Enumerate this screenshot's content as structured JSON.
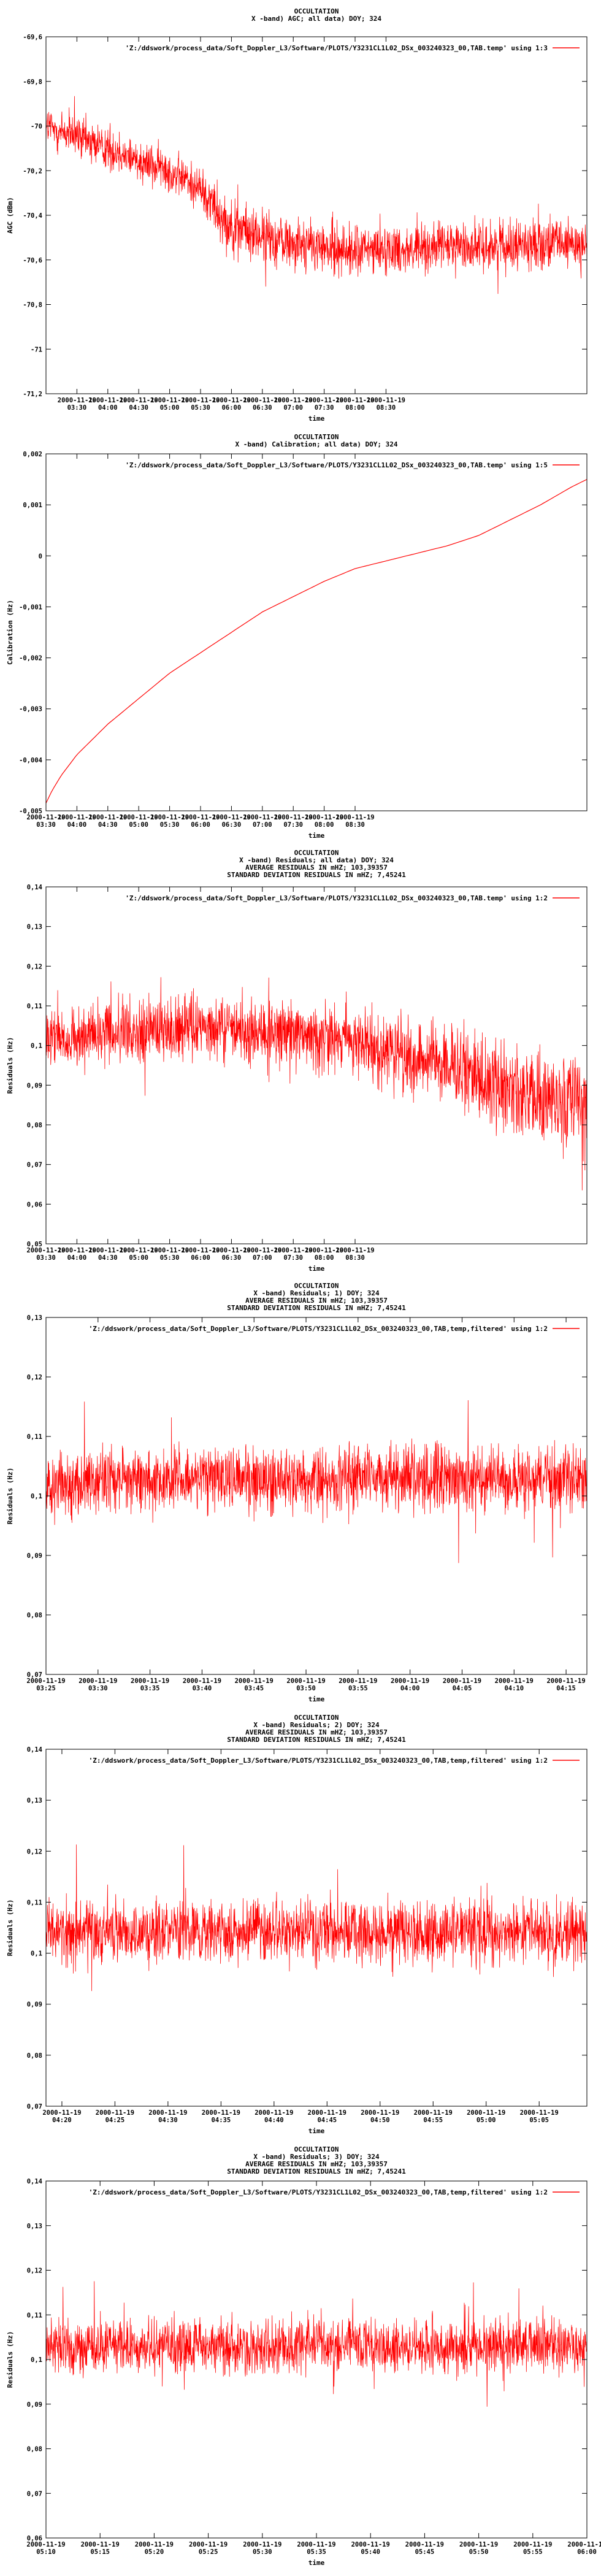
{
  "colors": {
    "series": "#ff0000",
    "axes": "#000000",
    "background": "#ffffff"
  },
  "chart_data": [
    {
      "type": "line",
      "title_lines": [
        "OCCULTATION",
        "X -band) AGC; all data) DOY; 324"
      ],
      "xlabel": "time",
      "ylabel": "AGC (dBm)",
      "legend": {
        "text": "'Z:/ddswork/process_data/Soft_Doppler_L3/Software/PLOTS/Y3231CL1L02_DSx_003240323_00,TAB.temp' using 1:3",
        "position": "top-right"
      },
      "ylim": [
        -71.2,
        -69.6
      ],
      "yticks": [
        {
          "value": -69.6,
          "label": "-69,6"
        },
        {
          "value": -69.8,
          "label": "-69,8"
        },
        {
          "value": -70.0,
          "label": "-70"
        },
        {
          "value": -70.2,
          "label": "-70,2"
        },
        {
          "value": -70.4,
          "label": "-70,4"
        },
        {
          "value": -70.6,
          "label": "-70,6"
        },
        {
          "value": -70.8,
          "label": "-70,8"
        },
        {
          "value": -71.0,
          "label": "-71"
        },
        {
          "value": -71.2,
          "label": "-71,2"
        }
      ],
      "xlim": [
        0,
        8.75
      ],
      "xticks": [
        {
          "value": 0.5,
          "line1": "2000-11-19",
          "line2": "03:30"
        },
        {
          "value": 1.0,
          "line1": "2000-11-19",
          "line2": "04:00"
        },
        {
          "value": 1.5,
          "line1": "2000-11-19",
          "line2": "04:30"
        },
        {
          "value": 2.0,
          "line1": "2000-11-19",
          "line2": "05:00"
        },
        {
          "value": 2.5,
          "line1": "2000-11-19",
          "line2": "05:30"
        },
        {
          "value": 3.0,
          "line1": "2000-11-19",
          "line2": "06:00"
        },
        {
          "value": 3.5,
          "line1": "2000-11-19",
          "line2": "06:30"
        },
        {
          "value": 4.0,
          "line1": "2000-11-19",
          "line2": "07:00"
        },
        {
          "value": 4.5,
          "line1": "2000-11-19",
          "line2": "07:30"
        },
        {
          "value": 5.0,
          "line1": "2000-11-19",
          "line2": "08:00"
        },
        {
          "value": 5.5,
          "line1": "2000-11-19",
          "line2": "08:30"
        }
      ],
      "series": [
        {
          "x": [
            0.0,
            0.5,
            1.0,
            1.5,
            2.0,
            2.5,
            2.7,
            3.0,
            3.5,
            4.0,
            4.5,
            5.0,
            5.5,
            6.0,
            6.5,
            7.0,
            7.5,
            8.0,
            8.5,
            8.75
          ],
          "values": [
            -70.0,
            -70.05,
            -70.1,
            -70.15,
            -70.2,
            -70.28,
            -70.35,
            -70.45,
            -70.5,
            -70.52,
            -70.55,
            -70.56,
            -70.55,
            -70.55,
            -70.54,
            -70.54,
            -70.53,
            -70.53,
            -70.53,
            -70.53
          ],
          "spread": [
            0.15,
            0.15,
            0.15,
            0.14,
            0.14,
            0.14,
            0.18,
            0.18,
            0.18,
            0.17,
            0.17,
            0.17,
            0.16,
            0.16,
            0.16,
            0.16,
            0.16,
            0.16,
            0.16,
            0.16
          ]
        }
      ]
    },
    {
      "type": "line",
      "title_lines": [
        "OCCULTATION",
        "X -band) Calibration; all data) DOY; 324"
      ],
      "xlabel": "time",
      "ylabel": "Calibration (Hz)",
      "legend": {
        "text": "'Z:/ddswork/process_data/Soft_Doppler_L3/Software/PLOTS/Y3231CL1L02_DSx_003240323_00,TAB.temp' using 1:5",
        "position": "top-right"
      },
      "ylim": [
        -0.005,
        0.002
      ],
      "yticks": [
        {
          "value": 0.002,
          "label": "0,002"
        },
        {
          "value": 0.001,
          "label": "0,001"
        },
        {
          "value": 0.0,
          "label": "0"
        },
        {
          "value": -0.001,
          "label": "-0,001"
        },
        {
          "value": -0.002,
          "label": "-0,002"
        },
        {
          "value": -0.003,
          "label": "-0,003"
        },
        {
          "value": -0.004,
          "label": "-0,004"
        },
        {
          "value": -0.005,
          "label": "-0,005"
        }
      ],
      "xlim": [
        0,
        8.75
      ],
      "xticks": [
        {
          "value": 0.0,
          "line1": "2000-11-19",
          "line2": "03:30"
        },
        {
          "value": 0.5,
          "line1": "2000-11-19",
          "line2": "04:00"
        },
        {
          "value": 1.0,
          "line1": "2000-11-19",
          "line2": "04:30"
        },
        {
          "value": 1.5,
          "line1": "2000-11-19",
          "line2": "05:00"
        },
        {
          "value": 2.0,
          "line1": "2000-11-19",
          "line2": "05:30"
        },
        {
          "value": 2.5,
          "line1": "2000-11-19",
          "line2": "06:00"
        },
        {
          "value": 3.0,
          "line1": "2000-11-19",
          "line2": "06:30"
        },
        {
          "value": 3.5,
          "line1": "2000-11-19",
          "line2": "07:00"
        },
        {
          "value": 4.0,
          "line1": "2000-11-19",
          "line2": "07:30"
        },
        {
          "value": 4.5,
          "line1": "2000-11-19",
          "line2": "08:00"
        },
        {
          "value": 5.0,
          "line1": "2000-11-19",
          "line2": "08:30"
        }
      ],
      "series": [
        {
          "x": [
            0.0,
            0.1,
            0.25,
            0.5,
            0.75,
            1.0,
            1.5,
            2.0,
            2.5,
            3.0,
            3.5,
            4.0,
            4.5,
            5.0,
            5.5,
            6.0,
            6.5,
            7.0,
            7.5,
            8.0,
            8.5,
            8.75
          ],
          "values": [
            -0.00485,
            -0.0046,
            -0.0043,
            -0.0039,
            -0.0036,
            -0.0033,
            -0.0028,
            -0.0023,
            -0.0019,
            -0.0015,
            -0.0011,
            -0.0008,
            -0.0005,
            -0.00025,
            -0.0001,
            5e-05,
            0.0002,
            0.0004,
            0.0007,
            0.001,
            0.00135,
            0.0015
          ],
          "spread": null
        }
      ]
    },
    {
      "type": "line",
      "title_lines": [
        "OCCULTATION",
        "X -band) Residuals; all data) DOY; 324",
        "AVERAGE RESIDUALS IN mHZ; 103,39357",
        "STANDARD DEVIATION RESIDUALS IN mHZ; 7,45241"
      ],
      "xlabel": "time",
      "ylabel": "Residuals (Hz)",
      "legend": {
        "text": "'Z:/ddswork/process_data/Soft_Doppler_L3/Software/PLOTS/Y3231CL1L02_DSx_003240323_00,TAB.temp' using 1:2",
        "position": "top-right"
      },
      "ylim": [
        0.05,
        0.14
      ],
      "yticks": [
        {
          "value": 0.14,
          "label": "0,14"
        },
        {
          "value": 0.13,
          "label": "0,13"
        },
        {
          "value": 0.12,
          "label": "0,12"
        },
        {
          "value": 0.11,
          "label": "0,11"
        },
        {
          "value": 0.1,
          "label": "0,1"
        },
        {
          "value": 0.09,
          "label": "0,09"
        },
        {
          "value": 0.08,
          "label": "0,08"
        },
        {
          "value": 0.07,
          "label": "0,07"
        },
        {
          "value": 0.06,
          "label": "0,06"
        },
        {
          "value": 0.05,
          "label": "0,05"
        }
      ],
      "xlim": [
        0,
        8.75
      ],
      "xticks": [
        {
          "value": 0.0,
          "line1": "2000-11-19",
          "line2": "03:30"
        },
        {
          "value": 0.5,
          "line1": "2000-11-19",
          "line2": "04:00"
        },
        {
          "value": 1.0,
          "line1": "2000-11-19",
          "line2": "04:30"
        },
        {
          "value": 1.5,
          "line1": "2000-11-19",
          "line2": "05:00"
        },
        {
          "value": 2.0,
          "line1": "2000-11-19",
          "line2": "05:30"
        },
        {
          "value": 2.5,
          "line1": "2000-11-19",
          "line2": "06:00"
        },
        {
          "value": 3.0,
          "line1": "2000-11-19",
          "line2": "06:30"
        },
        {
          "value": 3.5,
          "line1": "2000-11-19",
          "line2": "07:00"
        },
        {
          "value": 4.0,
          "line1": "2000-11-19",
          "line2": "07:30"
        },
        {
          "value": 4.5,
          "line1": "2000-11-19",
          "line2": "08:00"
        },
        {
          "value": 5.0,
          "line1": "2000-11-19",
          "line2": "08:30"
        }
      ],
      "series": [
        {
          "x": [
            0.0,
            1.0,
            2.0,
            3.0,
            4.0,
            5.0,
            5.5,
            6.0,
            6.5,
            7.0,
            7.5,
            8.0,
            8.5,
            8.75
          ],
          "values": [
            0.101,
            0.103,
            0.104,
            0.104,
            0.103,
            0.101,
            0.099,
            0.097,
            0.095,
            0.092,
            0.089,
            0.087,
            0.085,
            0.084
          ],
          "spread": [
            0.011,
            0.012,
            0.012,
            0.012,
            0.012,
            0.012,
            0.013,
            0.013,
            0.014,
            0.015,
            0.016,
            0.017,
            0.018,
            0.018
          ]
        }
      ]
    },
    {
      "type": "line",
      "title_lines": [
        "OCCULTATION",
        "X -band) Residuals; 1) DOY; 324",
        "AVERAGE RESIDUALS IN mHZ; 103,39357",
        "STANDARD DEVIATION RESIDUALS IN mHZ; 7,45241"
      ],
      "xlabel": "time",
      "ylabel": "Residuals (Hz)",
      "legend": {
        "text": "'Z:/ddswork/process_data/Soft_Doppler_L3/Software/PLOTS/Y3231CL1L02_DSx_003240323_00,TAB,temp,filtered' using 1:2",
        "position": "top-right"
      },
      "ylim": [
        0.07,
        0.13
      ],
      "yticks": [
        {
          "value": 0.13,
          "label": "0,13"
        },
        {
          "value": 0.12,
          "label": "0,12"
        },
        {
          "value": 0.11,
          "label": "0,11"
        },
        {
          "value": 0.1,
          "label": "0,1"
        },
        {
          "value": 0.09,
          "label": "0,09"
        },
        {
          "value": 0.08,
          "label": "0,08"
        },
        {
          "value": 0.07,
          "label": "0,07"
        }
      ],
      "xlim": [
        0,
        10.4
      ],
      "xticks": [
        {
          "value": 0.0,
          "line1": "2000-11-19",
          "line2": "03:25"
        },
        {
          "value": 1.0,
          "line1": "2000-11-19",
          "line2": "03:30"
        },
        {
          "value": 2.0,
          "line1": "2000-11-19",
          "line2": "03:35"
        },
        {
          "value": 3.0,
          "line1": "2000-11-19",
          "line2": "03:40"
        },
        {
          "value": 4.0,
          "line1": "2000-11-19",
          "line2": "03:45"
        },
        {
          "value": 5.0,
          "line1": "2000-11-19",
          "line2": "03:50"
        },
        {
          "value": 6.0,
          "line1": "2000-11-19",
          "line2": "03:55"
        },
        {
          "value": 7.0,
          "line1": "2000-11-19",
          "line2": "04:00"
        },
        {
          "value": 8.0,
          "line1": "2000-11-19",
          "line2": "04:05"
        },
        {
          "value": 9.0,
          "line1": "2000-11-19",
          "line2": "04:10"
        },
        {
          "value": 10.0,
          "line1": "2000-11-19",
          "line2": "04:15"
        }
      ],
      "series": [
        {
          "x": [
            0.0,
            2.0,
            4.0,
            6.0,
            8.0,
            10.0,
            10.4
          ],
          "values": [
            0.102,
            0.103,
            0.103,
            0.103,
            0.103,
            0.103,
            0.103
          ],
          "spread": [
            0.008,
            0.008,
            0.008,
            0.008,
            0.008,
            0.008,
            0.008
          ]
        }
      ]
    },
    {
      "type": "line",
      "title_lines": [
        "OCCULTATION",
        "X -band) Residuals; 2) DOY; 324",
        "AVERAGE RESIDUALS IN mHZ; 103,39357",
        "STANDARD DEVIATION RESIDUALS IN mHZ; 7,45241"
      ],
      "xlabel": "time",
      "ylabel": "Residuals (Hz)",
      "legend": {
        "text": "'Z:/ddswork/process_data/Soft_Doppler_L3/Software/PLOTS/Y3231CL1L02_DSx_003240323_00,TAB,temp,filtered' using 1:2",
        "position": "top-right"
      },
      "ylim": [
        0.07,
        0.14
      ],
      "yticks": [
        {
          "value": 0.14,
          "label": "0,14"
        },
        {
          "value": 0.13,
          "label": "0,13"
        },
        {
          "value": 0.12,
          "label": "0,12"
        },
        {
          "value": 0.11,
          "label": "0,11"
        },
        {
          "value": 0.1,
          "label": "0,1"
        },
        {
          "value": 0.09,
          "label": "0,09"
        },
        {
          "value": 0.08,
          "label": "0,08"
        },
        {
          "value": 0.07,
          "label": "0,07"
        }
      ],
      "xlim": [
        0,
        10.2
      ],
      "xticks": [
        {
          "value": 0.3,
          "line1": "2000-11-19",
          "line2": "04:20"
        },
        {
          "value": 1.3,
          "line1": "2000-11-19",
          "line2": "04:25"
        },
        {
          "value": 2.3,
          "line1": "2000-11-19",
          "line2": "04:30"
        },
        {
          "value": 3.3,
          "line1": "2000-11-19",
          "line2": "04:35"
        },
        {
          "value": 4.3,
          "line1": "2000-11-19",
          "line2": "04:40"
        },
        {
          "value": 5.3,
          "line1": "2000-11-19",
          "line2": "04:45"
        },
        {
          "value": 6.3,
          "line1": "2000-11-19",
          "line2": "04:50"
        },
        {
          "value": 7.3,
          "line1": "2000-11-19",
          "line2": "04:55"
        },
        {
          "value": 8.3,
          "line1": "2000-11-19",
          "line2": "05:00"
        },
        {
          "value": 9.3,
          "line1": "2000-11-19",
          "line2": "05:05"
        }
      ],
      "series": [
        {
          "x": [
            0.0,
            2.0,
            4.0,
            6.0,
            8.0,
            10.2
          ],
          "values": [
            0.104,
            0.104,
            0.104,
            0.104,
            0.104,
            0.104
          ],
          "spread": [
            0.009,
            0.009,
            0.009,
            0.009,
            0.009,
            0.009
          ]
        }
      ]
    },
    {
      "type": "line",
      "title_lines": [
        "OCCULTATION",
        "X -band) Residuals; 3) DOY; 324",
        "AVERAGE RESIDUALS IN mHZ; 103,39357",
        "STANDARD DEVIATION RESIDUALS IN mHZ; 7,45241"
      ],
      "xlabel": "time",
      "ylabel": "Residuals (Hz)",
      "legend": {
        "text": "'Z:/ddswork/process_data/Soft_Doppler_L3/Software/PLOTS/Y3231CL1L02_DSx_003240323_00,TAB,temp,filtered' using 1:2",
        "position": "top-right"
      },
      "ylim": [
        0.06,
        0.14
      ],
      "yticks": [
        {
          "value": 0.14,
          "label": "0,14"
        },
        {
          "value": 0.13,
          "label": "0,13"
        },
        {
          "value": 0.12,
          "label": "0,12"
        },
        {
          "value": 0.11,
          "label": "0,11"
        },
        {
          "value": 0.1,
          "label": "0,1"
        },
        {
          "value": 0.09,
          "label": "0,09"
        },
        {
          "value": 0.08,
          "label": "0,08"
        },
        {
          "value": 0.07,
          "label": "0,07"
        },
        {
          "value": 0.06,
          "label": "0,06"
        }
      ],
      "xlim": [
        0,
        10.0
      ],
      "xticks": [
        {
          "value": 0.0,
          "line1": "2000-11-19",
          "line2": "05:10"
        },
        {
          "value": 1.0,
          "line1": "2000-11-19",
          "line2": "05:15"
        },
        {
          "value": 2.0,
          "line1": "2000-11-19",
          "line2": "05:20"
        },
        {
          "value": 3.0,
          "line1": "2000-11-19",
          "line2": "05:25"
        },
        {
          "value": 4.0,
          "line1": "2000-11-19",
          "line2": "05:30"
        },
        {
          "value": 5.0,
          "line1": "2000-11-19",
          "line2": "05:35"
        },
        {
          "value": 6.0,
          "line1": "2000-11-19",
          "line2": "05:40"
        },
        {
          "value": 7.0,
          "line1": "2000-11-19",
          "line2": "05:45"
        },
        {
          "value": 8.0,
          "line1": "2000-11-19",
          "line2": "05:50"
        },
        {
          "value": 9.0,
          "line1": "2000-11-19",
          "line2": "05:55"
        },
        {
          "value": 10.0,
          "line1": "2000-11-19",
          "line2": "06:00"
        }
      ],
      "series": [
        {
          "x": [
            0.0,
            2.0,
            4.0,
            6.0,
            8.0,
            10.0
          ],
          "values": [
            0.103,
            0.103,
            0.103,
            0.103,
            0.103,
            0.103
          ],
          "spread": [
            0.009,
            0.009,
            0.009,
            0.009,
            0.009,
            0.009
          ]
        }
      ]
    }
  ]
}
